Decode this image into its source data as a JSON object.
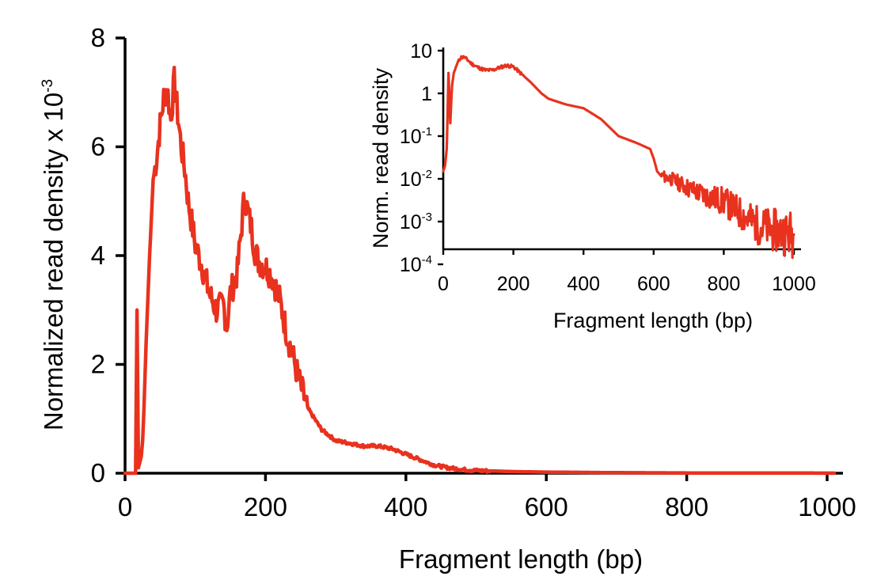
{
  "chart_data": [
    {
      "type": "line",
      "xlabel": "Fragment length (bp)",
      "ylabel": {
        "base": "Normalized read density x 10",
        "exponent": "-3"
      },
      "xlim": [
        0,
        1010
      ],
      "ylim": [
        0,
        8
      ],
      "x_ticks": [
        "0",
        "200",
        "400",
        "600",
        "800",
        "1000"
      ],
      "y_ticks": [
        "0",
        "2",
        "4",
        "6",
        "8"
      ],
      "color": "#e8321e",
      "grid": false,
      "series": [
        {
          "x": [
            0,
            15,
            17,
            19,
            21,
            23,
            25,
            27,
            30,
            35,
            40,
            45,
            50,
            55,
            60,
            65,
            70,
            75,
            80,
            85,
            90,
            95,
            100,
            110,
            120,
            130,
            140,
            145,
            150,
            155,
            160,
            165,
            170,
            175,
            180,
            185,
            190,
            195,
            200,
            205,
            210,
            220,
            230,
            240,
            250,
            260,
            280,
            300,
            320,
            340,
            360,
            380,
            400,
            420,
            440,
            460,
            480,
            500,
            550,
            600,
            650,
            700,
            800,
            900,
            1000,
            1010
          ],
          "y": [
            0,
            0,
            3.0,
            0.1,
            0.2,
            0.3,
            0.6,
            1.2,
            2.4,
            4.0,
            5.4,
            5.8,
            6.4,
            6.9,
            7.1,
            6.5,
            7.2,
            6.6,
            6.0,
            5.6,
            5.0,
            4.6,
            4.2,
            3.8,
            3.3,
            3.0,
            3.1,
            2.7,
            3.3,
            3.5,
            3.7,
            4.4,
            5.1,
            4.8,
            4.5,
            4.1,
            3.9,
            3.85,
            3.8,
            3.7,
            3.6,
            3.2,
            2.6,
            2.1,
            1.6,
            1.2,
            0.8,
            0.6,
            0.55,
            0.5,
            0.5,
            0.45,
            0.35,
            0.25,
            0.15,
            0.1,
            0.07,
            0.05,
            0.03,
            0.02,
            0.015,
            0.01,
            0.005,
            0.003,
            0.002,
            0.002
          ]
        }
      ]
    },
    {
      "type": "line",
      "xlabel": "Fragment length (bp)",
      "ylabel": "Norm. read density",
      "xlim": [
        0,
        1010
      ],
      "ylim": [
        0.0001,
        10
      ],
      "yscale": "log",
      "x_ticks": [
        "0",
        "200",
        "400",
        "600",
        "800",
        "1000"
      ],
      "y_ticks": [
        {
          "value": 10,
          "base": "10",
          "exponent": ""
        },
        {
          "value": 1,
          "base": "1",
          "exponent": ""
        },
        {
          "value": 0.1,
          "base": "10",
          "exponent": "-1"
        },
        {
          "value": 0.01,
          "base": "10",
          "exponent": "-2"
        },
        {
          "value": 0.001,
          "base": "10",
          "exponent": "-3"
        },
        {
          "value": 0.0001,
          "base": "10",
          "exponent": "-4"
        }
      ],
      "color": "#e8321e",
      "grid": false,
      "series": [
        {
          "x": [
            0,
            5,
            10,
            15,
            20,
            25,
            30,
            40,
            50,
            60,
            70,
            80,
            100,
            120,
            140,
            160,
            180,
            200,
            220,
            250,
            280,
            300,
            350,
            400,
            450,
            500,
            550,
            590,
            600,
            610,
            620,
            650,
            700,
            750,
            800,
            850,
            900,
            950,
            1000
          ],
          "y": [
            0.015,
            0.02,
            0.05,
            3.0,
            0.2,
            1.5,
            3.0,
            5.0,
            7.0,
            7.0,
            6.0,
            5.0,
            4.0,
            3.5,
            3.5,
            4.0,
            4.5,
            4.2,
            3.0,
            1.8,
            1.0,
            0.75,
            0.55,
            0.45,
            0.25,
            0.1,
            0.07,
            0.05,
            0.03,
            0.015,
            0.012,
            0.01,
            0.006,
            0.004,
            0.003,
            0.0015,
            0.0008,
            0.0006,
            0.0005
          ]
        }
      ]
    }
  ]
}
